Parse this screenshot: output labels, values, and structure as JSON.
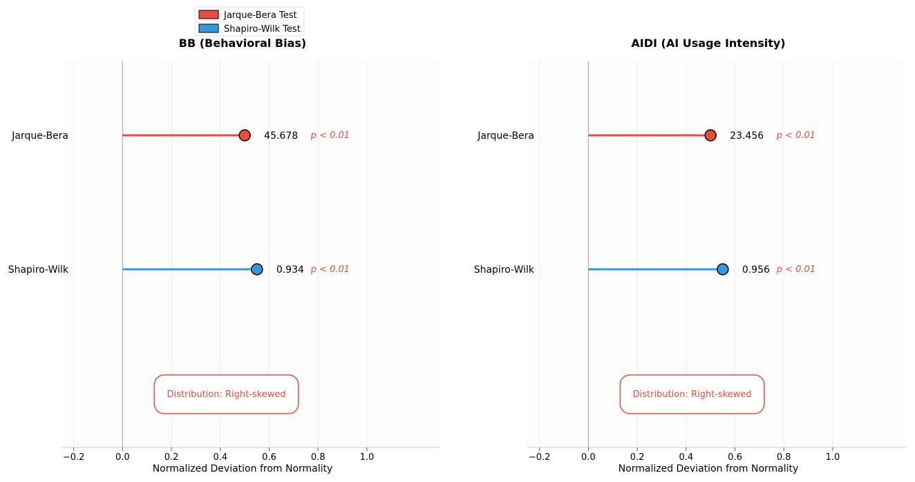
{
  "legend": {
    "items": [
      {
        "label": "Jarque-Bera Test",
        "color": "#e74c3c"
      },
      {
        "label": "Shapiro-Wilk Test",
        "color": "#3498db"
      }
    ]
  },
  "chart_data": [
    {
      "type": "lollipop",
      "title": "BB (Behavioral Bias)",
      "xlabel": "Normalized Deviation from Normality",
      "xlim": [
        -0.25,
        1.3
      ],
      "xticks": [
        -0.2,
        0.0,
        0.2,
        0.4,
        0.6,
        0.8,
        1.0
      ],
      "xtick_labels": [
        "−0.2",
        "0.0",
        "0.2",
        "0.4",
        "0.6",
        "0.8",
        "1.0"
      ],
      "grid": true,
      "categories": [
        "Jarque-Bera",
        "Shapiro-Wilk"
      ],
      "values": [
        0.5,
        0.55
      ],
      "value_labels": [
        "45.678",
        "0.934"
      ],
      "p_labels": [
        "p < 0.01",
        "p < 0.01"
      ],
      "colors": [
        "#e74c3c",
        "#3498db"
      ],
      "annotation": "Distribution: Right-skewed"
    },
    {
      "type": "lollipop",
      "title": "AIDI (AI Usage Intensity)",
      "xlabel": "Normalized Deviation from Normality",
      "xlim": [
        -0.25,
        1.3
      ],
      "xticks": [
        -0.2,
        0.0,
        0.2,
        0.4,
        0.6,
        0.8,
        1.0
      ],
      "xtick_labels": [
        "−0.2",
        "0.0",
        "0.2",
        "0.4",
        "0.6",
        "0.8",
        "1.0"
      ],
      "grid": true,
      "categories": [
        "Jarque-Bera",
        "Shapiro-Wilk"
      ],
      "values": [
        0.5,
        0.55
      ],
      "value_labels": [
        "23.456",
        "0.956"
      ],
      "p_labels": [
        "p < 0.01",
        "p < 0.01"
      ],
      "colors": [
        "#e74c3c",
        "#3498db"
      ],
      "annotation": "Distribution: Right-skewed"
    }
  ]
}
